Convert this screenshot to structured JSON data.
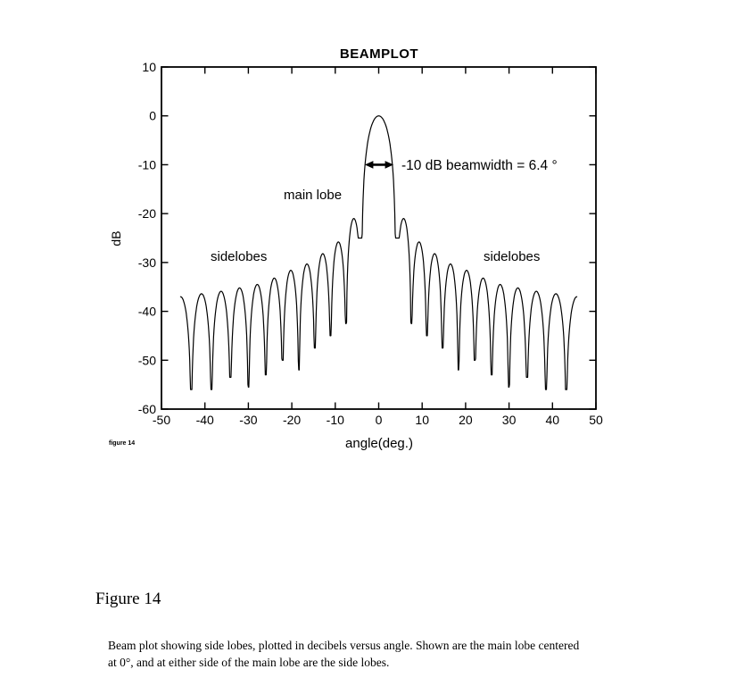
{
  "document": {
    "figure_small_label": "figure 14",
    "figure_heading": "Figure 14",
    "caption": {
      "lines": [
        "Beam plot showing side lobes, plotted in decibels versus angle. Shown are the main lobe centered",
        "at 0°, and at either side of the main lobe are the side lobes."
      ]
    }
  },
  "chart_data": {
    "type": "line",
    "title": "BEAMPLOT",
    "xlabel": "angle(deg.)",
    "ylabel": "dB",
    "xlim": [
      -50,
      50
    ],
    "ylim": [
      -60,
      10
    ],
    "xticks": [
      -50,
      -40,
      -30,
      -20,
      -10,
      0,
      10,
      20,
      30,
      40,
      50
    ],
    "yticks": [
      10,
      0,
      -10,
      -20,
      -30,
      -40,
      -50,
      -60
    ],
    "grid": false,
    "line_color": "#000000",
    "annotations": {
      "main_lobe_label": "main lobe",
      "sidelobes_left_label": "sidelobes",
      "sidelobes_right_label": "sidelobes",
      "beamwidth_label": "-10 dB beamwidth = 6.4 °",
      "beamwidth_db_level": -10,
      "beamwidth_deg": 6.4,
      "arrow_span_deg": [
        -3.2,
        3.2
      ]
    },
    "beam_model": {
      "comment_units": "lobes uniform in u=sin(theta); dB levels read from plot",
      "main_lobe": {
        "peak_angle_deg": 0,
        "peak_db": 0,
        "first_null_u": 0.069,
        "null_depth_db": -25
      },
      "null_spacing_u": 0.0615,
      "sidelobe_peak_angles_deg": [
        5.7,
        9.3,
        12.9,
        16.5,
        20.2,
        24.0,
        28.0,
        32.0,
        36.3,
        40.8,
        45.6
      ],
      "sidelobe_peaks_db": [
        -21.0,
        -25.8,
        -28.2,
        -30.3,
        -31.6,
        -33.2,
        -34.5,
        -35.2,
        -35.9,
        -36.4,
        -37.0
      ],
      "null_depths_db": [
        -25,
        -42.5,
        -45,
        -47.5,
        -52,
        -50,
        -53,
        -55.5,
        -53.5,
        -56,
        -56,
        -56
      ],
      "angle_range_deg": [
        -45.7,
        45.7
      ]
    }
  }
}
